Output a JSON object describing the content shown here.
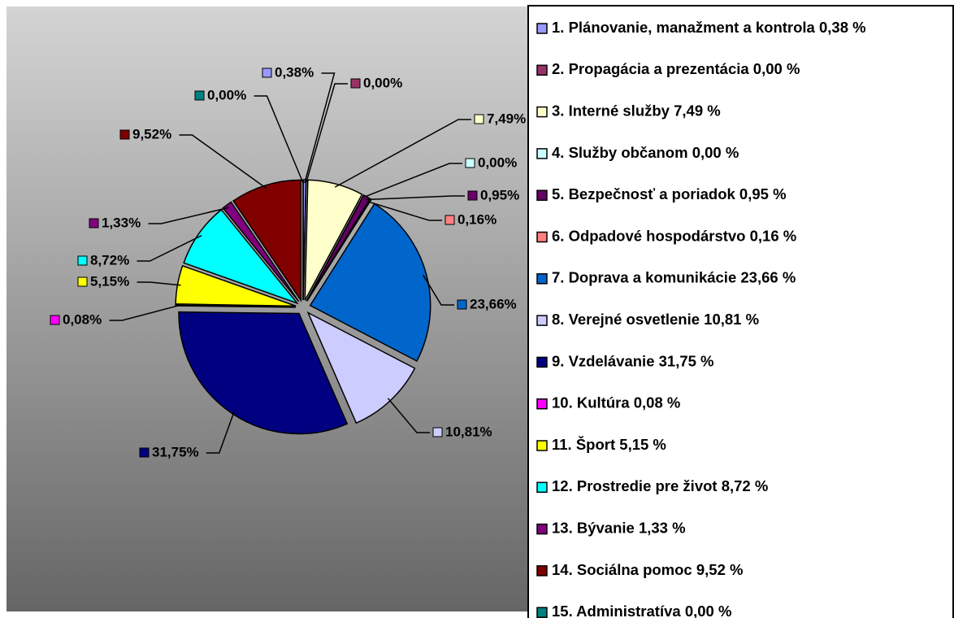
{
  "chart_data": {
    "type": "pie",
    "categories": [
      "1. Plánovanie, manažment a kontrola 0,38 %",
      "2. Propagácia a prezentácia 0,00 %",
      "3. Interné služby 7,49 %",
      "4. Služby občanom  0,00 %",
      "5. Bezpečnosť a poriadok  0,95 %",
      "6. Odpadové hospodárstvo 0,16 %",
      "7. Doprava a komunikácie  23,66 %",
      "8. Verejné osvetlenie 10,81 %",
      "9. Vzdelávanie 31,75 %",
      "10. Kultúra 0,08 %",
      "11. Šport 5,15 %",
      "12. Prostredie pre život 8,72 %",
      "13. Bývanie 1,33 %",
      "14. Sociálna pomoc 9,52 %",
      "15. Administratíva 0,00 %"
    ],
    "values": [
      0.38,
      0.0,
      7.49,
      0.0,
      0.95,
      0.16,
      23.66,
      10.81,
      31.75,
      0.08,
      5.15,
      8.72,
      1.33,
      9.52,
      0.0
    ],
    "value_labels": [
      "0,38%",
      "0,00%",
      "7,49%",
      "0,00%",
      "0,95%",
      "0,16%",
      "23,66%",
      "10,81%",
      "31,75%",
      "0,08%",
      "5,15%",
      "8,72%",
      "1,33%",
      "9,52%",
      "0,00%"
    ],
    "colors": [
      "#9999ff",
      "#993366",
      "#ffffcc",
      "#ccffff",
      "#660066",
      "#ff8080",
      "#0066cc",
      "#ccccff",
      "#000080",
      "#ff00ff",
      "#ffff00",
      "#00ffff",
      "#800080",
      "#800000",
      "#008080"
    ],
    "legend": "right"
  }
}
